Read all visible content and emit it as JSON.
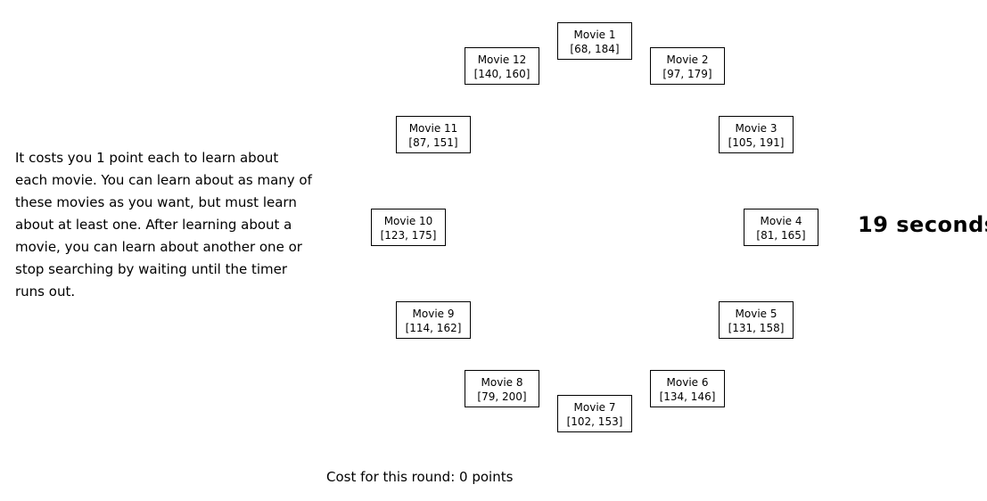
{
  "instructions": "It costs you 1 point each to learn about each movie. You can learn about as many of these movies as you want, but must learn about at least one. After learning about a movie, you can learn about another one or stop searching by waiting until the timer runs out.",
  "movies": [
    {
      "name": "Movie 1",
      "values": "[68, 184]"
    },
    {
      "name": "Movie 2",
      "values": "[97, 179]"
    },
    {
      "name": "Movie 3",
      "values": "[105, 191]"
    },
    {
      "name": "Movie 4",
      "values": "[81, 165]"
    },
    {
      "name": "Movie 5",
      "values": "[131, 158]"
    },
    {
      "name": "Movie 6",
      "values": "[134, 146]"
    },
    {
      "name": "Movie 7",
      "values": "[102, 153]"
    },
    {
      "name": "Movie 8",
      "values": "[79, 200]"
    },
    {
      "name": "Movie 9",
      "values": "[114, 162]"
    },
    {
      "name": "Movie 10",
      "values": "[123, 175]"
    },
    {
      "name": "Movie 11",
      "values": "[87, 151]"
    },
    {
      "name": "Movie 12",
      "values": "[140, 160]"
    }
  ],
  "timer": "19 seconds",
  "cost": "Cost for this round: 0 points"
}
